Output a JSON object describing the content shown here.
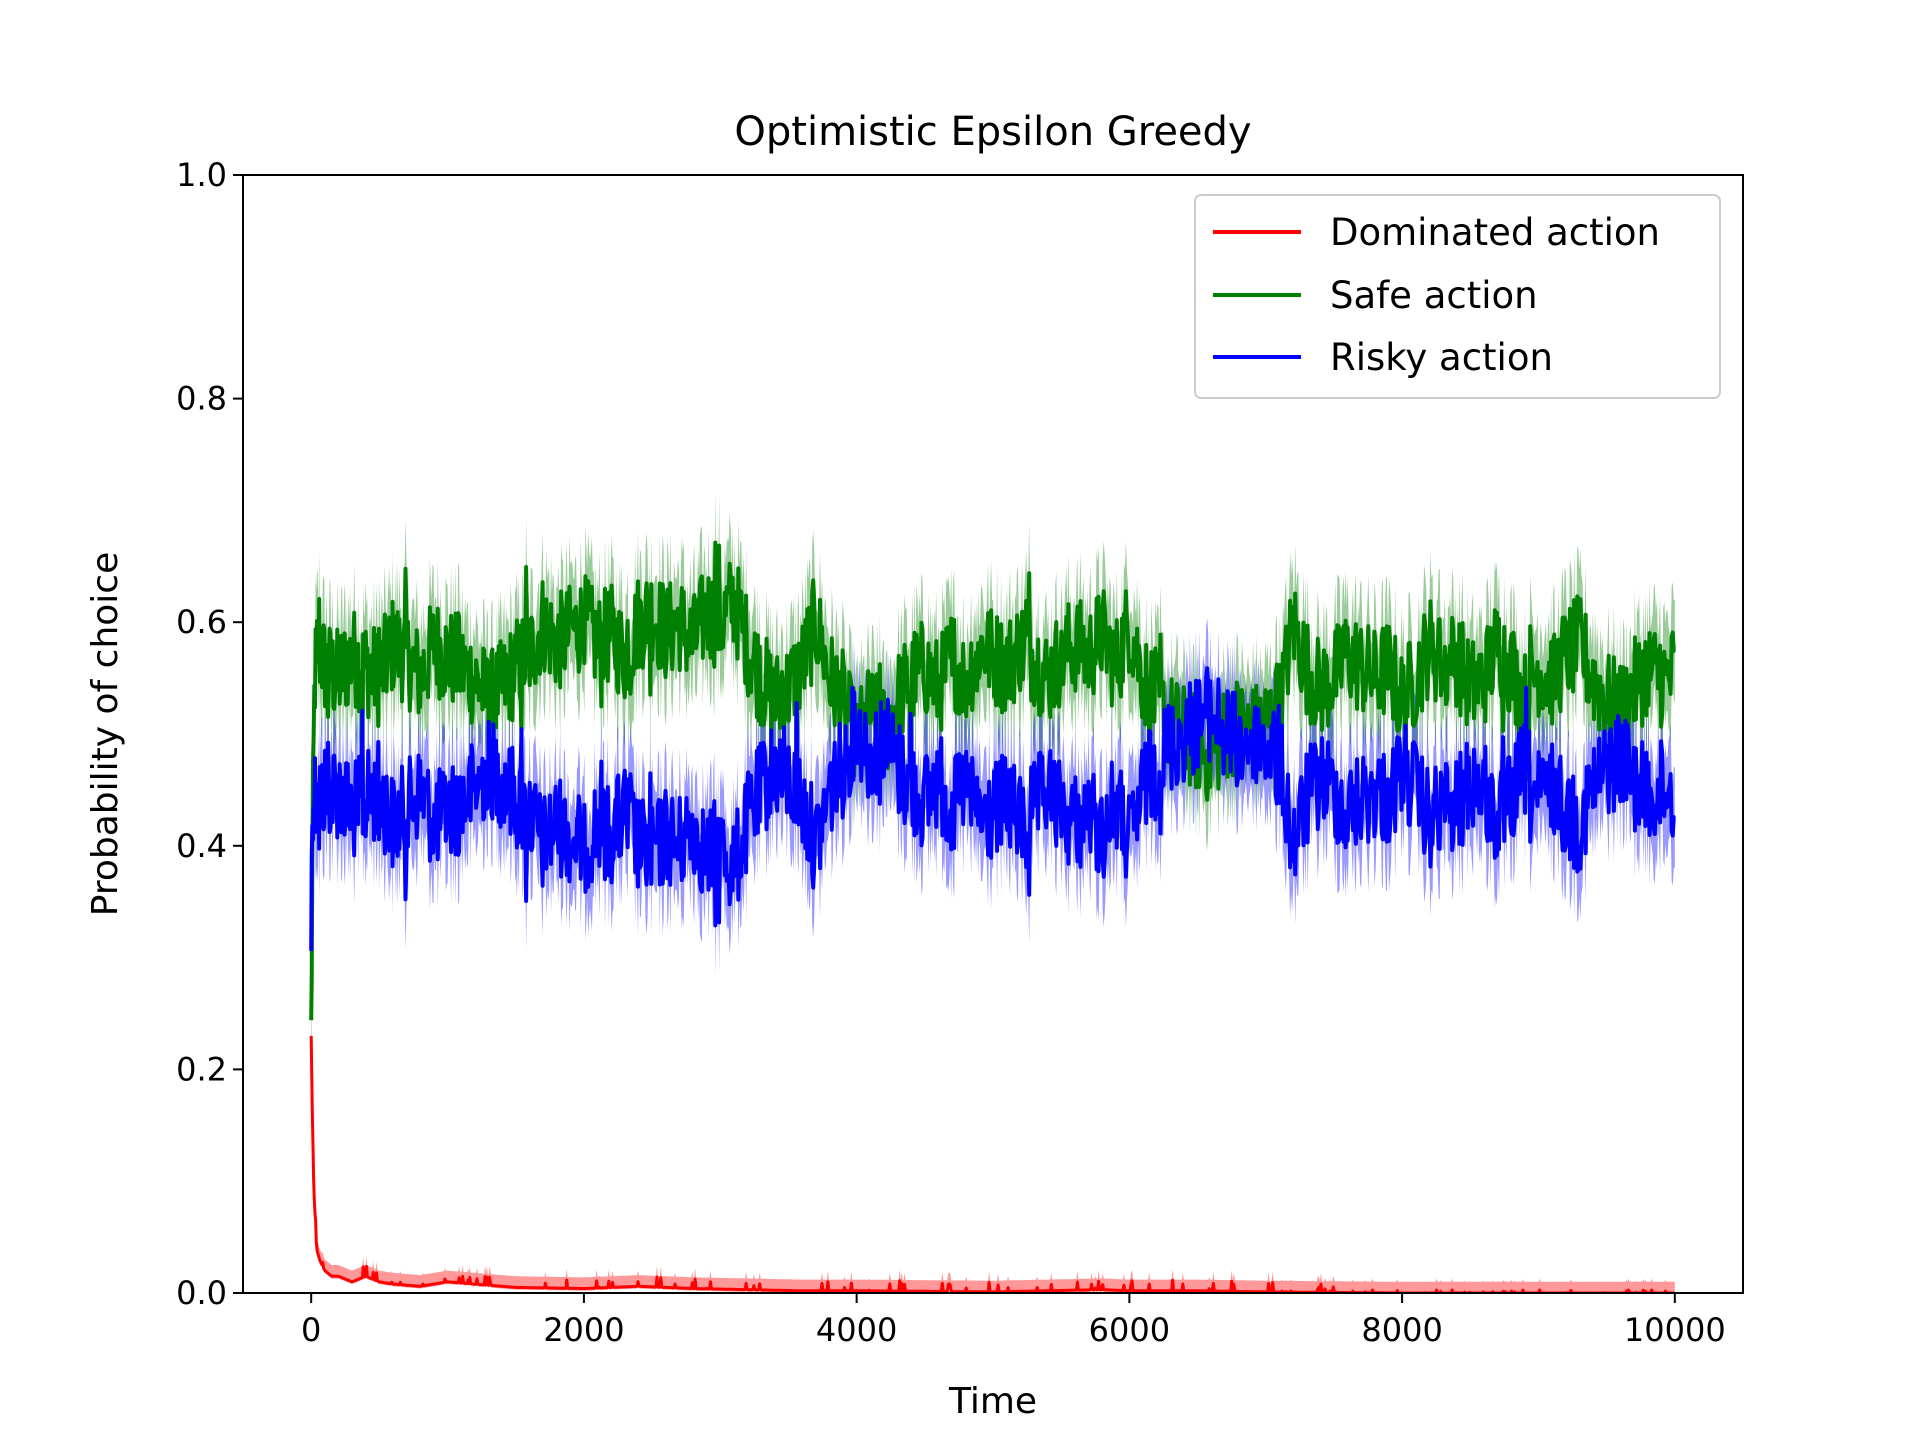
{
  "chart_data": {
    "type": "line",
    "title": "Optimistic Epsilon Greedy",
    "xlabel": "Time",
    "ylabel": "Probability of choice",
    "xlim": [
      -500,
      10500
    ],
    "ylim": [
      0.0,
      1.0
    ],
    "xticks": [
      0,
      2000,
      4000,
      6000,
      8000,
      10000
    ],
    "xtick_labels": [
      "0",
      "2000",
      "4000",
      "6000",
      "8000",
      "10000"
    ],
    "yticks": [
      0.0,
      0.2,
      0.4,
      0.6,
      0.8,
      1.0
    ],
    "ytick_labels": [
      "0.0",
      "0.2",
      "0.4",
      "0.6",
      "0.8",
      "1.0"
    ],
    "legend_position": "upper right",
    "grid": false,
    "series": [
      {
        "name": "Dominated action",
        "color": "#ff0000",
        "x": [
          0,
          10,
          20,
          40,
          60,
          100,
          150,
          200,
          300,
          400,
          500,
          600,
          800,
          1000,
          1200,
          1500,
          2000,
          2400,
          2800,
          3200,
          3600,
          4000,
          5000,
          5800,
          6000,
          6500,
          7000,
          8000,
          9000,
          10000
        ],
        "values": [
          0.23,
          0.15,
          0.09,
          0.04,
          0.03,
          0.02,
          0.015,
          0.015,
          0.01,
          0.015,
          0.01,
          0.008,
          0.006,
          0.01,
          0.008,
          0.005,
          0.004,
          0.006,
          0.004,
          0.003,
          0.002,
          0.002,
          0.001,
          0.003,
          0.002,
          0.002,
          0.001,
          0.0,
          0.0,
          0.0
        ],
        "band_halfwidth": 0.01
      },
      {
        "name": "Safe action",
        "color": "#008000",
        "x": [
          0,
          10,
          25,
          50,
          100,
          200,
          300,
          400,
          500,
          600,
          700,
          800,
          900,
          1000,
          1100,
          1200,
          1300,
          1400,
          1500,
          1600,
          1700,
          1800,
          1900,
          2000,
          2100,
          2200,
          2300,
          2400,
          2500,
          2600,
          2700,
          2800,
          2900,
          3000,
          3100,
          3200,
          3300,
          3400,
          3500,
          3600,
          3700,
          3800,
          3900,
          4000,
          4100,
          4200,
          4300,
          4400,
          4500,
          4600,
          4700,
          4800,
          4900,
          5000,
          5100,
          5200,
          5300,
          5400,
          5500,
          5600,
          5700,
          5800,
          5900,
          6000,
          6100,
          6200,
          6300,
          6400,
          6500,
          6600,
          6700,
          6800,
          6900,
          7000,
          7100,
          7200,
          7300,
          7400,
          7500,
          7600,
          7700,
          7800,
          7900,
          8000,
          8100,
          8200,
          8300,
          8400,
          8500,
          8600,
          8700,
          8800,
          8900,
          9000,
          9100,
          9200,
          9300,
          9400,
          9500,
          9600,
          9700,
          9800,
          9900,
          10000
        ],
        "values": [
          0.23,
          0.4,
          0.55,
          0.58,
          0.56,
          0.55,
          0.57,
          0.56,
          0.55,
          0.58,
          0.57,
          0.55,
          0.58,
          0.57,
          0.56,
          0.55,
          0.53,
          0.54,
          0.56,
          0.57,
          0.6,
          0.58,
          0.59,
          0.6,
          0.58,
          0.59,
          0.57,
          0.6,
          0.61,
          0.59,
          0.6,
          0.58,
          0.61,
          0.6,
          0.62,
          0.58,
          0.55,
          0.53,
          0.54,
          0.56,
          0.6,
          0.55,
          0.53,
          0.49,
          0.52,
          0.5,
          0.53,
          0.55,
          0.56,
          0.54,
          0.57,
          0.55,
          0.58,
          0.57,
          0.56,
          0.58,
          0.57,
          0.55,
          0.57,
          0.58,
          0.57,
          0.59,
          0.56,
          0.6,
          0.55,
          0.53,
          0.51,
          0.5,
          0.49,
          0.48,
          0.5,
          0.51,
          0.5,
          0.51,
          0.52,
          0.6,
          0.56,
          0.54,
          0.55,
          0.57,
          0.56,
          0.55,
          0.56,
          0.53,
          0.55,
          0.58,
          0.56,
          0.57,
          0.54,
          0.55,
          0.58,
          0.56,
          0.53,
          0.56,
          0.55,
          0.57,
          0.58,
          0.55,
          0.53,
          0.52,
          0.54,
          0.56,
          0.55,
          0.55
        ],
        "noise": 0.045,
        "band_halfwidth": 0.045
      },
      {
        "name": "Risky action",
        "color": "#0000ff",
        "x": [
          0,
          10,
          25,
          50,
          100,
          200,
          300,
          400,
          500,
          600,
          700,
          800,
          900,
          1000,
          1100,
          1200,
          1300,
          1400,
          1500,
          1600,
          1700,
          1800,
          1900,
          2000,
          2100,
          2200,
          2300,
          2400,
          2500,
          2600,
          2700,
          2800,
          2900,
          3000,
          3100,
          3200,
          3300,
          3400,
          3500,
          3600,
          3700,
          3800,
          3900,
          4000,
          4100,
          4200,
          4300,
          4400,
          4500,
          4600,
          4700,
          4800,
          4900,
          5000,
          5100,
          5200,
          5300,
          5400,
          5500,
          5600,
          5700,
          5800,
          5900,
          6000,
          6100,
          6200,
          6300,
          6400,
          6500,
          6600,
          6700,
          6800,
          6900,
          7000,
          7100,
          7200,
          7300,
          7400,
          7500,
          7600,
          7700,
          7800,
          7900,
          8000,
          8100,
          8200,
          8300,
          8400,
          8500,
          8600,
          8700,
          8800,
          8900,
          9000,
          9100,
          9200,
          9300,
          9400,
          9500,
          9600,
          9700,
          9800,
          9900,
          10000
        ],
        "values": [
          0.32,
          0.45,
          0.45,
          0.44,
          0.45,
          0.45,
          0.43,
          0.44,
          0.45,
          0.42,
          0.43,
          0.45,
          0.42,
          0.43,
          0.44,
          0.45,
          0.47,
          0.46,
          0.44,
          0.43,
          0.4,
          0.42,
          0.41,
          0.4,
          0.42,
          0.41,
          0.43,
          0.4,
          0.39,
          0.41,
          0.4,
          0.42,
          0.39,
          0.4,
          0.38,
          0.42,
          0.45,
          0.47,
          0.46,
          0.44,
          0.4,
          0.45,
          0.47,
          0.51,
          0.48,
          0.5,
          0.47,
          0.45,
          0.44,
          0.46,
          0.43,
          0.45,
          0.42,
          0.43,
          0.44,
          0.42,
          0.43,
          0.45,
          0.43,
          0.42,
          0.43,
          0.41,
          0.44,
          0.4,
          0.45,
          0.47,
          0.49,
          0.5,
          0.51,
          0.52,
          0.5,
          0.49,
          0.5,
          0.49,
          0.48,
          0.4,
          0.44,
          0.46,
          0.45,
          0.43,
          0.44,
          0.45,
          0.44,
          0.47,
          0.45,
          0.42,
          0.44,
          0.43,
          0.46,
          0.45,
          0.42,
          0.44,
          0.47,
          0.44,
          0.45,
          0.43,
          0.42,
          0.45,
          0.47,
          0.48,
          0.46,
          0.44,
          0.45,
          0.45
        ],
        "noise": 0.045,
        "band_halfwidth": 0.045
      }
    ]
  }
}
